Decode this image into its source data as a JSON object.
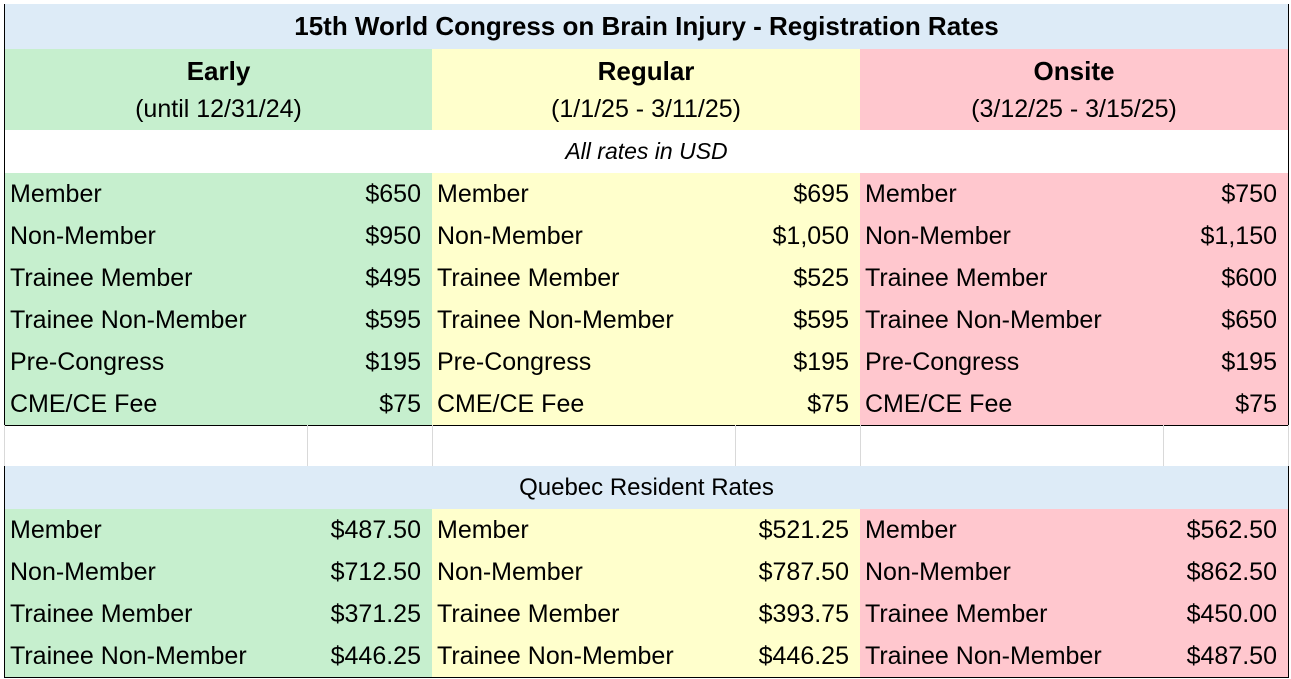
{
  "title": "15th World Congress on Brain Injury - Registration Rates",
  "periods": [
    {
      "name": "Early",
      "dates": "(until 12/31/24)"
    },
    {
      "name": "Regular",
      "dates": "(1/1/25 - 3/11/25)"
    },
    {
      "name": "Onsite",
      "dates": "(3/12/25 - 3/15/25)"
    }
  ],
  "currency_note": "All rates in USD",
  "rates": {
    "labels": [
      "Member",
      "Non-Member",
      "Trainee Member",
      "Trainee Non-Member",
      "Pre-Congress",
      "CME/CE Fee"
    ],
    "early": [
      "$650",
      "$950",
      "$495",
      "$595",
      "$195",
      "$75"
    ],
    "regular": [
      "$695",
      "$1,050",
      "$525",
      "$595",
      "$195",
      "$75"
    ],
    "onsite": [
      "$750",
      "$1,150",
      "$600",
      "$650",
      "$195",
      "$75"
    ]
  },
  "quebec": {
    "title": "Quebec Resident Rates",
    "labels": [
      "Member",
      "Non-Member",
      "Trainee Member",
      "Trainee Non-Member"
    ],
    "early": [
      "$487.50",
      "$712.50",
      "$371.25",
      "$446.25"
    ],
    "regular": [
      "$521.25",
      "$787.50",
      "$393.75",
      "$446.25"
    ],
    "onsite": [
      "$562.50",
      "$862.50",
      "$450.00",
      "$487.50"
    ]
  },
  "colors": {
    "early": "#c6efce",
    "regular": "#ffffcc",
    "onsite": "#ffc7ce",
    "title_bg": "#ddebf7"
  }
}
